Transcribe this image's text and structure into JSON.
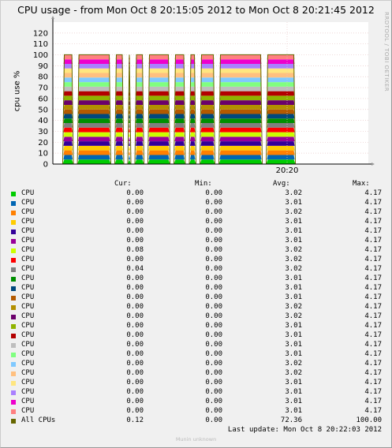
{
  "title": "CPU usage - from Mon Oct  8 20:15:05 2012 to Mon Oct  8 20:21:45 2012",
  "ylabel": "cpu use %",
  "watermark": "RRDTOOL / TOBI OETIKER",
  "footer_text": "Last update:  Mon Oct  8 20:22:03 2012",
  "munin_text": "Munin unknown",
  "legend_headers": {
    "cur": "Cur:",
    "min": "Min:",
    "avg": "Avg:",
    "max": "Max:"
  },
  "chart_data": {
    "type": "area",
    "stacked": true,
    "xlabel": "",
    "ylabel": "cpu use %",
    "ylim": [
      0,
      130
    ],
    "yticks": [
      "0",
      "10",
      "20",
      "30",
      "40",
      "50",
      "60",
      "70",
      "80",
      "90",
      "100",
      "110",
      "120"
    ],
    "xticks": [
      "20:20"
    ],
    "grid": true,
    "series": [
      {
        "name": "CPU",
        "color": "#00cc00",
        "cur": "0.00",
        "min": "0.00",
        "avg": "3.02",
        "max": "4.17"
      },
      {
        "name": "CPU",
        "color": "#0066b3",
        "cur": "0.00",
        "min": "0.00",
        "avg": "3.01",
        "max": "4.17"
      },
      {
        "name": "CPU",
        "color": "#ff8000",
        "cur": "0.00",
        "min": "0.00",
        "avg": "3.02",
        "max": "4.17"
      },
      {
        "name": "CPU",
        "color": "#ffcc00",
        "cur": "0.00",
        "min": "0.00",
        "avg": "3.01",
        "max": "4.17"
      },
      {
        "name": "CPU",
        "color": "#330099",
        "cur": "0.00",
        "min": "0.00",
        "avg": "3.01",
        "max": "4.17"
      },
      {
        "name": "CPU",
        "color": "#990099",
        "cur": "0.00",
        "min": "0.00",
        "avg": "3.01",
        "max": "4.17"
      },
      {
        "name": "CPU",
        "color": "#ccff00",
        "cur": "0.08",
        "min": "0.00",
        "avg": "3.02",
        "max": "4.17"
      },
      {
        "name": "CPU",
        "color": "#ff0000",
        "cur": "0.00",
        "min": "0.00",
        "avg": "3.02",
        "max": "4.17"
      },
      {
        "name": "CPU",
        "color": "#808080",
        "cur": "0.04",
        "min": "0.00",
        "avg": "3.02",
        "max": "4.17"
      },
      {
        "name": "CPU",
        "color": "#008f00",
        "cur": "0.00",
        "min": "0.00",
        "avg": "3.01",
        "max": "4.17"
      },
      {
        "name": "CPU",
        "color": "#00487d",
        "cur": "0.00",
        "min": "0.00",
        "avg": "3.01",
        "max": "4.17"
      },
      {
        "name": "CPU",
        "color": "#b35a00",
        "cur": "0.00",
        "min": "0.00",
        "avg": "3.01",
        "max": "4.17"
      },
      {
        "name": "CPU",
        "color": "#b38f00",
        "cur": "0.00",
        "min": "0.00",
        "avg": "3.02",
        "max": "4.17"
      },
      {
        "name": "CPU",
        "color": "#6b006b",
        "cur": "0.00",
        "min": "0.00",
        "avg": "3.02",
        "max": "4.17"
      },
      {
        "name": "CPU",
        "color": "#8fb300",
        "cur": "0.00",
        "min": "0.00",
        "avg": "3.01",
        "max": "4.17"
      },
      {
        "name": "CPU",
        "color": "#b30000",
        "cur": "0.00",
        "min": "0.00",
        "avg": "3.01",
        "max": "4.17"
      },
      {
        "name": "CPU",
        "color": "#bebebe",
        "cur": "0.00",
        "min": "0.00",
        "avg": "3.01",
        "max": "4.17"
      },
      {
        "name": "CPU",
        "color": "#80ff80",
        "cur": "0.00",
        "min": "0.00",
        "avg": "3.01",
        "max": "4.17"
      },
      {
        "name": "CPU",
        "color": "#80c9ff",
        "cur": "0.00",
        "min": "0.00",
        "avg": "3.02",
        "max": "4.17"
      },
      {
        "name": "CPU",
        "color": "#ffc080",
        "cur": "0.00",
        "min": "0.00",
        "avg": "3.02",
        "max": "4.17"
      },
      {
        "name": "CPU",
        "color": "#ffe680",
        "cur": "0.00",
        "min": "0.00",
        "avg": "3.01",
        "max": "4.17"
      },
      {
        "name": "CPU",
        "color": "#aa80ff",
        "cur": "0.00",
        "min": "0.00",
        "avg": "3.01",
        "max": "4.17"
      },
      {
        "name": "CPU",
        "color": "#ee00cc",
        "cur": "0.00",
        "min": "0.00",
        "avg": "3.01",
        "max": "4.17"
      },
      {
        "name": "CPU",
        "color": "#ff8080",
        "cur": "0.00",
        "min": "0.00",
        "avg": "3.01",
        "max": "4.17"
      },
      {
        "name": "All CPUs",
        "color": "#666600",
        "cur": "0.12",
        "min": "0.00",
        "avg": "72.36",
        "max": "100.00"
      }
    ],
    "stack_values": [
      4.17,
      4.17,
      4.17,
      4.17,
      4.17,
      4.17,
      4.17,
      4.17,
      4.17,
      4.17,
      4.17,
      4.17,
      4.17,
      4.17,
      4.17,
      4.17,
      4.17,
      4.17,
      4.17,
      4.17,
      4.17,
      4.17,
      4.17,
      4.17
    ],
    "gaps_time_fraction": [
      0.0,
      0.062,
      0.22,
      0.275,
      0.305,
      0.36,
      0.47,
      0.535,
      0.58,
      0.66,
      0.86,
      1.0
    ]
  }
}
